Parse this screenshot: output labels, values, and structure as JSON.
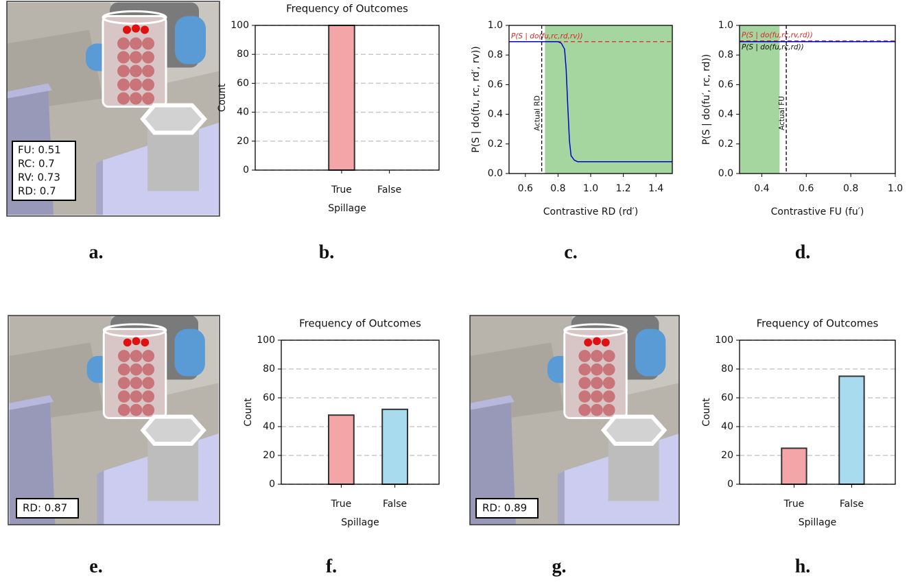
{
  "chart_data": [
    {
      "type": "bar",
      "title": "Frequency of Outcomes",
      "categories": [
        "True",
        "False"
      ],
      "values": [
        100,
        0
      ],
      "colors": [
        "#f4a5a7",
        "#a7dbed"
      ],
      "edgecolor": "#333333",
      "xlabel": "Spillage",
      "ylabel": "Count",
      "ylim": [
        0,
        100
      ],
      "yticks": [
        0,
        20,
        40,
        60,
        80,
        100
      ],
      "grid": true
    },
    {
      "type": "line",
      "x": [
        0.5,
        0.6,
        0.7,
        0.8,
        0.82,
        0.84,
        0.85,
        0.86,
        0.87,
        0.88,
        0.9,
        0.92,
        0.95,
        1.0,
        1.2,
        1.5
      ],
      "series": [
        {
          "color": "#0000cc",
          "values": [
            0.89,
            0.89,
            0.89,
            0.89,
            0.88,
            0.84,
            0.7,
            0.45,
            0.22,
            0.12,
            0.09,
            0.08,
            0.08,
            0.08,
            0.08,
            0.08
          ]
        }
      ],
      "xlabel": "Contrastive RD (rd′)",
      "ylabel": "P(S | do(fu, rc, rd′, rv))",
      "xlim": [
        0.5,
        1.5
      ],
      "xticks": [
        0.6,
        0.8,
        {
          "value": 1,
          "label": "1.0"
        },
        1.2,
        1.4
      ],
      "ylim": [
        0,
        1
      ],
      "yticks": [
        {
          "value": 0,
          "label": "0.0"
        },
        0.2,
        0.4,
        0.6,
        0.8,
        {
          "value": 1,
          "label": "1.0"
        }
      ],
      "shaded": {
        "range": [
          0.72,
          1.5
        ],
        "color": "#a5d6a0"
      },
      "reference_line": {
        "label": "P(S | do(fu,rc,rd,rv))",
        "value": 0.89,
        "color": "#d62728"
      },
      "vertical_line": {
        "label": "Actual RD",
        "value": 0.7
      }
    },
    {
      "type": "line",
      "x": [
        0.3,
        1.0
      ],
      "series": [
        {
          "name": "P(S | do(fu,rc,rd))",
          "color": "#0000cc",
          "values": [
            0.89,
            0.89
          ]
        }
      ],
      "xlabel": "Contrastive FU (fu′)",
      "ylabel": "P(S | do(fu′, rc, rd))",
      "xlim": [
        0.3,
        1.0
      ],
      "xticks": [
        0.4,
        0.6,
        0.8,
        {
          "value": 1,
          "label": "1.0"
        }
      ],
      "ylim": [
        0,
        1
      ],
      "yticks": [
        {
          "value": 0,
          "label": "0.0"
        },
        0.2,
        0.4,
        0.6,
        0.8,
        {
          "value": 1,
          "label": "1.0"
        }
      ],
      "shaded": {
        "range": [
          0.3,
          0.48
        ],
        "color": "#a5d6a0"
      },
      "reference_line": {
        "label": "P(S | do(fu,rc,rv,rd))",
        "value": 0.895,
        "color": "#d62728"
      },
      "vertical_line": {
        "label": "Actual FU",
        "value": 0.51
      }
    },
    {
      "type": "bar",
      "title": "Frequency of Outcomes",
      "categories": [
        "True",
        "False"
      ],
      "values": [
        48,
        52
      ],
      "colors": [
        "#f4a5a7",
        "#a7dbed"
      ],
      "edgecolor": "#333333",
      "xlabel": "Spillage",
      "ylabel": "Count",
      "ylim": [
        0,
        100
      ],
      "yticks": [
        0,
        20,
        40,
        60,
        80,
        100
      ],
      "grid": true
    },
    {
      "type": "bar",
      "title": "Frequency of Outcomes",
      "categories": [
        "True",
        "False"
      ],
      "values": [
        25,
        75
      ],
      "colors": [
        "#f4a5a7",
        "#a7dbed"
      ],
      "edgecolor": "#333333",
      "xlabel": "Spillage",
      "ylabel": "Count",
      "ylim": [
        0,
        100
      ],
      "yticks": [
        0,
        20,
        40,
        60,
        80,
        100
      ],
      "grid": true
    }
  ],
  "panels": {
    "labels": [
      "a.",
      "b.",
      "c.",
      "d.",
      "e.",
      "f.",
      "g.",
      "h."
    ],
    "overlays": [
      [
        "FU: 0.51",
        "RC: 0.7",
        "RV: 0.73",
        "RD: 0.7"
      ],
      [
        "RD: 0.87"
      ],
      [
        "RD: 0.89"
      ]
    ]
  }
}
